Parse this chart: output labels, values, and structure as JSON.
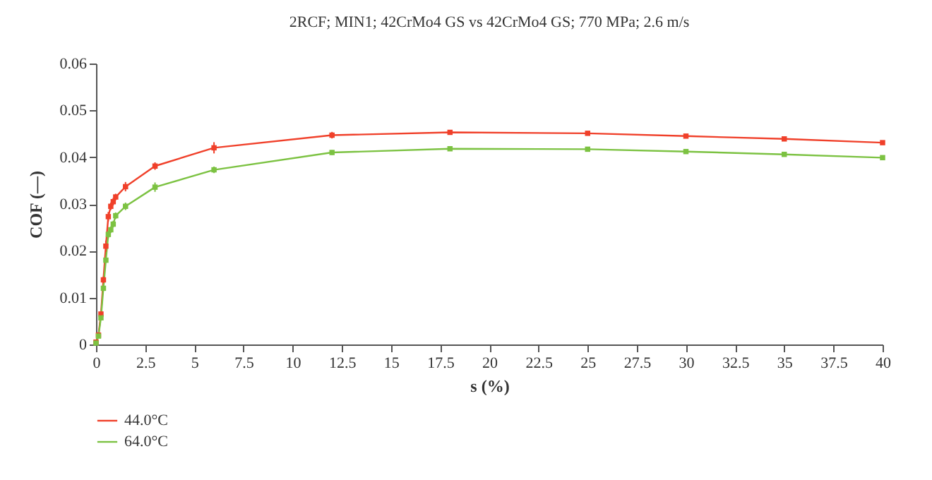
{
  "chart_data": {
    "type": "line",
    "title": "2RCF; MIN1; 42CrMo4 GS vs 42CrMo4 GS; 770 MPa; 2.6 m/s",
    "xlabel": "s (%)",
    "ylabel": "COF (—)",
    "x": [
      0,
      0.125,
      0.25,
      0.375,
      0.5,
      0.625,
      0.75,
      0.875,
      1,
      1.5,
      3,
      6,
      12,
      18,
      25,
      30,
      35,
      40
    ],
    "series": [
      {
        "name": "44.0°C",
        "color": "#f0402a",
        "values": [
          0.0005,
          0.002,
          0.0065,
          0.0138,
          0.021,
          0.0273,
          0.0295,
          0.0305,
          0.0315,
          0.0337,
          0.0381,
          0.042,
          0.0447,
          0.0453,
          0.0451,
          0.0445,
          0.0439,
          0.0431
        ],
        "errors": [
          null,
          null,
          0.0005,
          0.0007,
          0.0012,
          0.001,
          0.0008,
          0.0008,
          0.0007,
          0.001,
          0.0008,
          0.0012,
          0.0007,
          null,
          null,
          null,
          null,
          null
        ]
      },
      {
        "name": "64.0°C",
        "color": "#7cc242",
        "values": [
          0.0003,
          0.0018,
          0.0057,
          0.012,
          0.018,
          0.0235,
          0.0245,
          0.0257,
          0.0275,
          0.0295,
          0.0336,
          0.0373,
          0.041,
          0.0418,
          0.0417,
          0.0412,
          0.0406,
          0.0399
        ],
        "errors": [
          null,
          null,
          0.0005,
          0.0005,
          0.0005,
          0.0008,
          0.0007,
          0.0007,
          0.0007,
          0.0008,
          0.001,
          0.0007,
          0.0005,
          null,
          null,
          null,
          null,
          null
        ]
      }
    ],
    "xlim": [
      0,
      40
    ],
    "xticks": [
      0,
      2.5,
      5,
      7.5,
      10,
      12.5,
      15,
      17.5,
      20,
      22.5,
      25,
      27.5,
      30,
      32.5,
      35,
      37.5,
      40
    ],
    "ylim": [
      0,
      0.06
    ],
    "yticks": [
      0,
      0.01,
      0.02,
      0.03,
      0.04,
      0.05,
      0.06
    ],
    "grid": false,
    "legend": "bottom left",
    "marker": "square",
    "line_style": "solid"
  }
}
